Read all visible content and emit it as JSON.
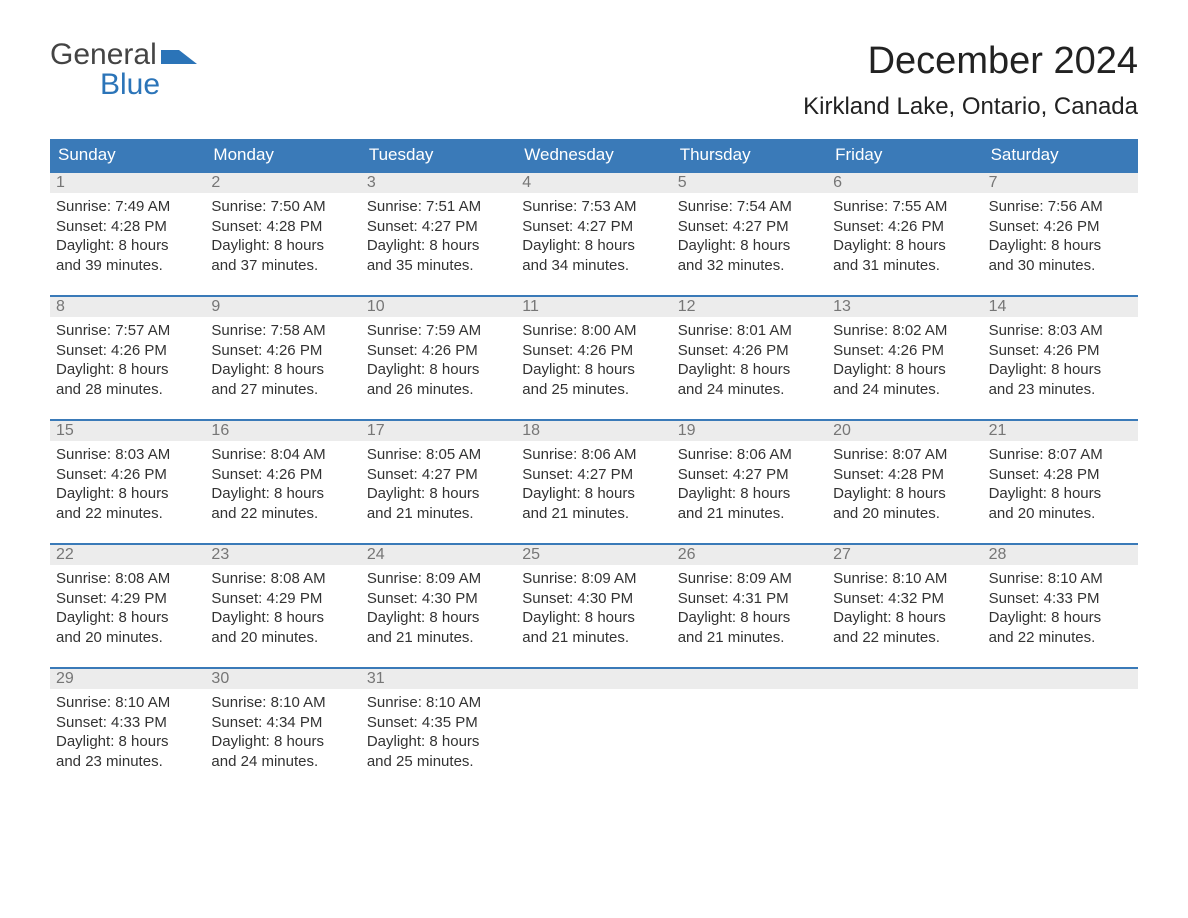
{
  "branding": {
    "logo_text_1": "General",
    "logo_text_2": "Blue",
    "logo_general_color": "#444444",
    "logo_blue_color": "#2b74b8",
    "flag_color": "#2b74b8"
  },
  "header": {
    "month_title": "December 2024",
    "location": "Kirkland Lake, Ontario, Canada"
  },
  "style": {
    "header_bg": "#3a7ab8",
    "header_text": "#ffffff",
    "daynum_bg": "#ececec",
    "daynum_color": "#767676",
    "body_text": "#333333",
    "border_color": "#3a7ab8",
    "page_bg": "#ffffff",
    "dow_fontsize": 17,
    "body_fontsize": 15,
    "title_fontsize": 38,
    "location_fontsize": 24
  },
  "days_of_week": [
    "Sunday",
    "Monday",
    "Tuesday",
    "Wednesday",
    "Thursday",
    "Friday",
    "Saturday"
  ],
  "weeks": [
    [
      {
        "n": "1",
        "sunrise": "Sunrise: 7:49 AM",
        "sunset": "Sunset: 4:28 PM",
        "d1": "Daylight: 8 hours",
        "d2": "and 39 minutes."
      },
      {
        "n": "2",
        "sunrise": "Sunrise: 7:50 AM",
        "sunset": "Sunset: 4:28 PM",
        "d1": "Daylight: 8 hours",
        "d2": "and 37 minutes."
      },
      {
        "n": "3",
        "sunrise": "Sunrise: 7:51 AM",
        "sunset": "Sunset: 4:27 PM",
        "d1": "Daylight: 8 hours",
        "d2": "and 35 minutes."
      },
      {
        "n": "4",
        "sunrise": "Sunrise: 7:53 AM",
        "sunset": "Sunset: 4:27 PM",
        "d1": "Daylight: 8 hours",
        "d2": "and 34 minutes."
      },
      {
        "n": "5",
        "sunrise": "Sunrise: 7:54 AM",
        "sunset": "Sunset: 4:27 PM",
        "d1": "Daylight: 8 hours",
        "d2": "and 32 minutes."
      },
      {
        "n": "6",
        "sunrise": "Sunrise: 7:55 AM",
        "sunset": "Sunset: 4:26 PM",
        "d1": "Daylight: 8 hours",
        "d2": "and 31 minutes."
      },
      {
        "n": "7",
        "sunrise": "Sunrise: 7:56 AM",
        "sunset": "Sunset: 4:26 PM",
        "d1": "Daylight: 8 hours",
        "d2": "and 30 minutes."
      }
    ],
    [
      {
        "n": "8",
        "sunrise": "Sunrise: 7:57 AM",
        "sunset": "Sunset: 4:26 PM",
        "d1": "Daylight: 8 hours",
        "d2": "and 28 minutes."
      },
      {
        "n": "9",
        "sunrise": "Sunrise: 7:58 AM",
        "sunset": "Sunset: 4:26 PM",
        "d1": "Daylight: 8 hours",
        "d2": "and 27 minutes."
      },
      {
        "n": "10",
        "sunrise": "Sunrise: 7:59 AM",
        "sunset": "Sunset: 4:26 PM",
        "d1": "Daylight: 8 hours",
        "d2": "and 26 minutes."
      },
      {
        "n": "11",
        "sunrise": "Sunrise: 8:00 AM",
        "sunset": "Sunset: 4:26 PM",
        "d1": "Daylight: 8 hours",
        "d2": "and 25 minutes."
      },
      {
        "n": "12",
        "sunrise": "Sunrise: 8:01 AM",
        "sunset": "Sunset: 4:26 PM",
        "d1": "Daylight: 8 hours",
        "d2": "and 24 minutes."
      },
      {
        "n": "13",
        "sunrise": "Sunrise: 8:02 AM",
        "sunset": "Sunset: 4:26 PM",
        "d1": "Daylight: 8 hours",
        "d2": "and 24 minutes."
      },
      {
        "n": "14",
        "sunrise": "Sunrise: 8:03 AM",
        "sunset": "Sunset: 4:26 PM",
        "d1": "Daylight: 8 hours",
        "d2": "and 23 minutes."
      }
    ],
    [
      {
        "n": "15",
        "sunrise": "Sunrise: 8:03 AM",
        "sunset": "Sunset: 4:26 PM",
        "d1": "Daylight: 8 hours",
        "d2": "and 22 minutes."
      },
      {
        "n": "16",
        "sunrise": "Sunrise: 8:04 AM",
        "sunset": "Sunset: 4:26 PM",
        "d1": "Daylight: 8 hours",
        "d2": "and 22 minutes."
      },
      {
        "n": "17",
        "sunrise": "Sunrise: 8:05 AM",
        "sunset": "Sunset: 4:27 PM",
        "d1": "Daylight: 8 hours",
        "d2": "and 21 minutes."
      },
      {
        "n": "18",
        "sunrise": "Sunrise: 8:06 AM",
        "sunset": "Sunset: 4:27 PM",
        "d1": "Daylight: 8 hours",
        "d2": "and 21 minutes."
      },
      {
        "n": "19",
        "sunrise": "Sunrise: 8:06 AM",
        "sunset": "Sunset: 4:27 PM",
        "d1": "Daylight: 8 hours",
        "d2": "and 21 minutes."
      },
      {
        "n": "20",
        "sunrise": "Sunrise: 8:07 AM",
        "sunset": "Sunset: 4:28 PM",
        "d1": "Daylight: 8 hours",
        "d2": "and 20 minutes."
      },
      {
        "n": "21",
        "sunrise": "Sunrise: 8:07 AM",
        "sunset": "Sunset: 4:28 PM",
        "d1": "Daylight: 8 hours",
        "d2": "and 20 minutes."
      }
    ],
    [
      {
        "n": "22",
        "sunrise": "Sunrise: 8:08 AM",
        "sunset": "Sunset: 4:29 PM",
        "d1": "Daylight: 8 hours",
        "d2": "and 20 minutes."
      },
      {
        "n": "23",
        "sunrise": "Sunrise: 8:08 AM",
        "sunset": "Sunset: 4:29 PM",
        "d1": "Daylight: 8 hours",
        "d2": "and 20 minutes."
      },
      {
        "n": "24",
        "sunrise": "Sunrise: 8:09 AM",
        "sunset": "Sunset: 4:30 PM",
        "d1": "Daylight: 8 hours",
        "d2": "and 21 minutes."
      },
      {
        "n": "25",
        "sunrise": "Sunrise: 8:09 AM",
        "sunset": "Sunset: 4:30 PM",
        "d1": "Daylight: 8 hours",
        "d2": "and 21 minutes."
      },
      {
        "n": "26",
        "sunrise": "Sunrise: 8:09 AM",
        "sunset": "Sunset: 4:31 PM",
        "d1": "Daylight: 8 hours",
        "d2": "and 21 minutes."
      },
      {
        "n": "27",
        "sunrise": "Sunrise: 8:10 AM",
        "sunset": "Sunset: 4:32 PM",
        "d1": "Daylight: 8 hours",
        "d2": "and 22 minutes."
      },
      {
        "n": "28",
        "sunrise": "Sunrise: 8:10 AM",
        "sunset": "Sunset: 4:33 PM",
        "d1": "Daylight: 8 hours",
        "d2": "and 22 minutes."
      }
    ],
    [
      {
        "n": "29",
        "sunrise": "Sunrise: 8:10 AM",
        "sunset": "Sunset: 4:33 PM",
        "d1": "Daylight: 8 hours",
        "d2": "and 23 minutes."
      },
      {
        "n": "30",
        "sunrise": "Sunrise: 8:10 AM",
        "sunset": "Sunset: 4:34 PM",
        "d1": "Daylight: 8 hours",
        "d2": "and 24 minutes."
      },
      {
        "n": "31",
        "sunrise": "Sunrise: 8:10 AM",
        "sunset": "Sunset: 4:35 PM",
        "d1": "Daylight: 8 hours",
        "d2": "and 25 minutes."
      },
      null,
      null,
      null,
      null
    ]
  ]
}
